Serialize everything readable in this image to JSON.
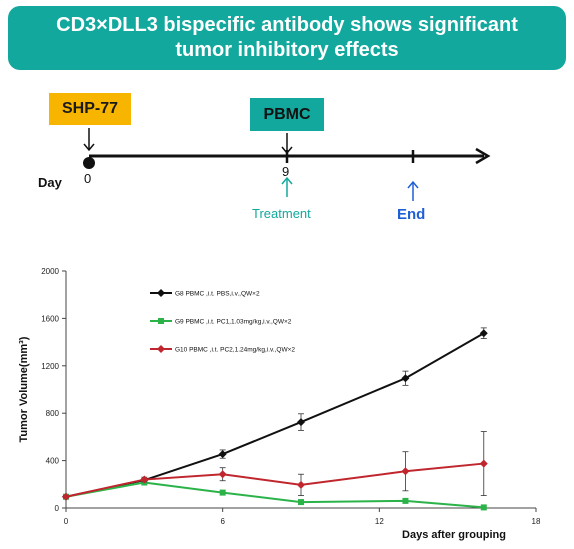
{
  "banner": {
    "title": "CD3×DLL3 bispecific antibody shows significant tumor inhibitory effects"
  },
  "timeline": {
    "shp_label": "SHP-77",
    "pbmc_label": "PBMC",
    "day_label": "Day",
    "day0": "0",
    "day9": "9",
    "treatment_label": "Treatment",
    "end_label": "End",
    "colors": {
      "treatment": "#12A89D",
      "end": "#1F5FD6"
    }
  },
  "chart_data": {
    "type": "line",
    "ylabel": "Tumor Volume(mm³)",
    "xlabel": "Days after grouping",
    "xlim": [
      0,
      18
    ],
    "ylim": [
      0,
      2000
    ],
    "xticks": [
      0,
      6,
      12,
      18
    ],
    "yticks": [
      0,
      400,
      800,
      1200,
      1600,
      2000
    ],
    "series": [
      {
        "name": "G8 PBMC ,i.t. PBS,i.v.,QW×2",
        "color": "#111111",
        "marker": "diamond",
        "x": [
          0,
          3,
          6,
          9,
          13,
          16
        ],
        "y": [
          95,
          235,
          455,
          725,
          1095,
          1475
        ],
        "err": [
          10,
          15,
          35,
          70,
          60,
          45
        ]
      },
      {
        "name": "G9 PBMC ,i.t. PC1,1.03mg/kg,i.v.,QW×2",
        "color": "#2BB34A",
        "marker": "square",
        "x": [
          0,
          3,
          6,
          9,
          13,
          16
        ],
        "y": [
          95,
          215,
          130,
          50,
          60,
          5
        ],
        "err": [
          0,
          0,
          0,
          0,
          0,
          0
        ]
      },
      {
        "name": "G10 PBMC ,i.t. PC2,1.24mg/kg,i.v.,QW×2",
        "color": "#C0262D",
        "marker": "diamond",
        "x": [
          0,
          3,
          6,
          9,
          13,
          16
        ],
        "y": [
          95,
          240,
          285,
          195,
          310,
          375
        ],
        "err": [
          10,
          20,
          55,
          90,
          165,
          270
        ]
      }
    ]
  }
}
